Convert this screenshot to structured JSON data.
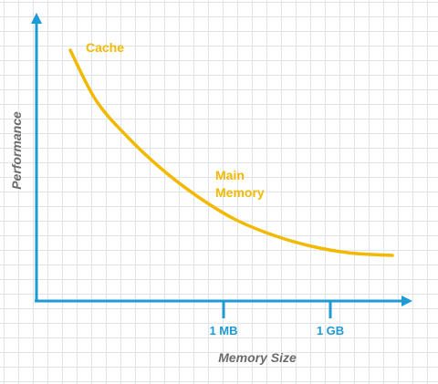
{
  "chart_data": {
    "type": "line",
    "title": "",
    "xlabel": "Memory Size",
    "ylabel": "Performance",
    "x_ticks": [
      "1 MB",
      "1 GB"
    ],
    "annotations": [
      "Cache",
      "Main",
      "Memory"
    ],
    "series": [
      {
        "values": [
          1.0,
          0.78,
          0.62,
          0.48,
          0.36,
          0.26,
          0.19,
          0.14,
          0.11,
          0.1
        ]
      }
    ],
    "ylim": [
      0,
      1
    ],
    "grid": true,
    "colors": {
      "curve": "#f2b900",
      "axis": "#1e9ad6",
      "annotation": "#f2b900",
      "tick_label": "#1e9ad6",
      "axis_title": "#6b6b6b"
    }
  }
}
